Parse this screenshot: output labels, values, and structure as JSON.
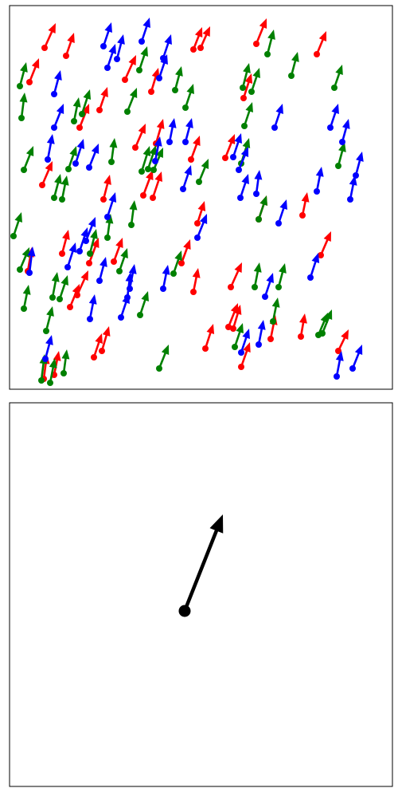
{
  "chart_data": [
    {
      "type": "quiver",
      "xlim": [
        0,
        481
      ],
      "ylim": [
        0,
        481
      ],
      "series": [
        {
          "color": "#ff0000",
          "x": [
            25,
            44,
            71,
            41,
            118,
            168,
            180,
            178,
            145,
            88,
            113,
            158,
            231,
            240,
            310,
            386,
            294,
            271,
            236,
            216,
            231,
            278,
            313,
            368,
            391,
            246,
            275,
            281,
            291,
            328,
            366,
            413,
            116,
            106,
            76,
            85,
            66,
            100,
            131,
            43,
            56,
            23,
            184,
            228
          ],
          "y": [
            385,
            428,
            418,
            256,
            238,
            243,
            240,
            373,
            388,
            328,
            350,
            303,
            426,
            428,
            433,
            420,
            365,
            290,
            208,
            158,
            122,
            128,
            213,
            218,
            168,
            51,
            78,
            76,
            28,
            63,
            66,
            48,
            48,
            40,
            103,
            118,
            170,
            158,
            160,
            13,
            18,
            148,
            308,
            288
          ],
          "u": [
            12,
            14,
            10,
            13,
            8,
            12,
            11,
            9,
            14,
            12,
            10,
            13,
            11,
            12,
            13,
            12,
            10,
            12,
            9,
            11,
            6,
            14,
            10,
            6,
            13,
            10,
            12,
            9,
            11,
            6,
            5,
            13,
            9,
            10,
            12,
            14,
            8,
            12,
            11,
            4,
            6,
            5,
            9,
            11
          ],
          "v": [
            30,
            31,
            29,
            30,
            31,
            32,
            33,
            30,
            31,
            30,
            29,
            30,
            28,
            27,
            32,
            29,
            31,
            30,
            28,
            30,
            30,
            31,
            30,
            29,
            30,
            31,
            30,
            30,
            31,
            30,
            29,
            27,
            31,
            30,
            29,
            31,
            30,
            32,
            30,
            31,
            30,
            30,
            31,
            30
          ]
        },
        {
          "color": "#008000",
          "x": [
            13,
            15,
            18,
            5,
            13,
            18,
            56,
            66,
            74,
            81,
            91,
            128,
            166,
            174,
            181,
            163,
            208,
            221,
            238,
            148,
            153,
            123,
            101,
            138,
            164,
            63,
            54,
            46,
            40,
            51,
            68,
            188,
            206,
            293,
            304,
            324,
            354,
            408,
            413,
            291,
            295,
            308,
            338,
            331,
            283,
            388,
            393,
            313
          ],
          "y": [
            380,
            340,
            275,
            192,
            150,
            101,
            240,
            238,
            276,
            336,
            345,
            285,
            273,
            276,
            275,
            400,
            375,
            353,
            260,
            348,
            206,
            190,
            170,
            148,
            93,
            113,
            115,
            73,
            11,
            8,
            20,
            26,
            145,
            378,
            373,
            420,
            393,
            378,
            280,
            283,
            330,
            128,
            128,
            85,
            53,
            68,
            70,
            213
          ],
          "u": [
            8,
            4,
            12,
            10,
            12,
            6,
            8,
            6,
            10,
            6,
            10,
            4,
            10,
            10,
            12,
            10,
            8,
            10,
            12,
            12,
            4,
            4,
            8,
            10,
            10,
            10,
            6,
            8,
            4,
            6,
            4,
            12,
            10,
            8,
            10,
            8,
            8,
            10,
            8,
            10,
            10,
            6,
            8,
            6,
            10,
            12,
            12,
            10
          ],
          "v": [
            30,
            32,
            30,
            30,
            28,
            30,
            30,
            30,
            29,
            30,
            31,
            30,
            32,
            30,
            28,
            30,
            30,
            30,
            29,
            30,
            31,
            30,
            31,
            29,
            30,
            30,
            32,
            31,
            33,
            31,
            30,
            30,
            29,
            31,
            30,
            31,
            30,
            29,
            30,
            32,
            30,
            31,
            30,
            30,
            30,
            28,
            30,
            30
          ]
        },
        {
          "color": "#0000ff",
          "x": [
            56,
            56,
            48,
            100,
            83,
            118,
            123,
            135,
            166,
            188,
            193,
            183,
            201,
            221,
            218,
            288,
            290,
            310,
            338,
            386,
            428,
            435,
            418,
            403,
            333,
            281,
            236,
            123,
            113,
            73,
            88,
            96,
            148,
            140,
            101,
            193,
            321,
            378,
            291,
            313,
            411,
            431,
            45,
            25,
            151
          ],
          "y": [
            370,
            328,
            288,
            278,
            283,
            430,
            403,
            414,
            436,
            390,
            415,
            286,
            310,
            310,
            251,
            275,
            240,
            245,
            208,
            248,
            238,
            268,
            310,
            328,
            328,
            291,
            190,
            216,
            136,
            153,
            173,
            186,
            115,
            90,
            88,
            126,
            116,
            140,
            46,
            56,
            16,
            26,
            38,
            146,
            126
          ],
          "u": [
            8,
            12,
            6,
            12,
            10,
            10,
            10,
            8,
            10,
            10,
            10,
            6,
            6,
            8,
            10,
            12,
            10,
            4,
            10,
            6,
            6,
            8,
            8,
            10,
            10,
            10,
            12,
            10,
            8,
            10,
            10,
            12,
            4,
            10,
            6,
            6,
            10,
            10,
            10,
            6,
            6,
            12,
            8,
            4,
            6
          ],
          "v": [
            30,
            30,
            32,
            30,
            31,
            30,
            30,
            31,
            30,
            30,
            30,
            31,
            30,
            30,
            30,
            29,
            30,
            30,
            30,
            31,
            30,
            30,
            29,
            30,
            30,
            30,
            30,
            31,
            30,
            31,
            30,
            30,
            32,
            30,
            31,
            30,
            30,
            31,
            30,
            31,
            32,
            30,
            30,
            33,
            31
          ]
        }
      ]
    },
    {
      "type": "quiver",
      "xlim": [
        0,
        481
      ],
      "ylim": [
        0,
        481
      ],
      "series": [
        {
          "color": "#000000",
          "x": [
            220
          ],
          "y": [
            220
          ],
          "u": [
            48
          ],
          "v": [
            121
          ]
        }
      ]
    }
  ]
}
